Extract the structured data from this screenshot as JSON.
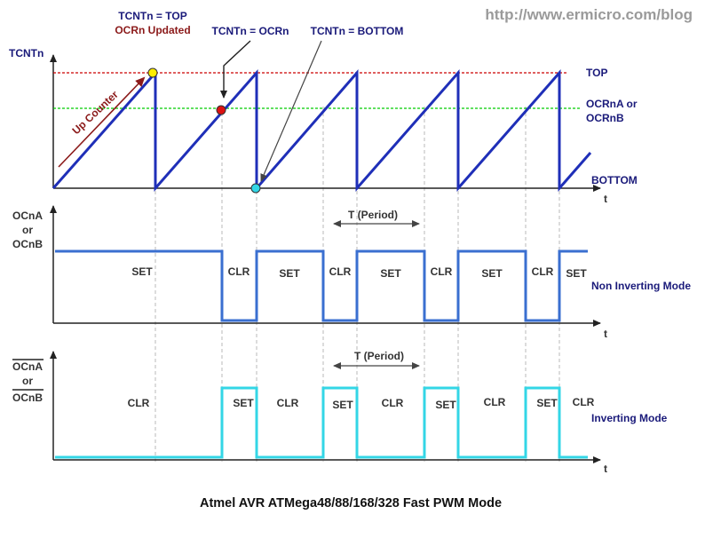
{
  "watermark": "http://www.ermicro.com/blog",
  "caption": "Atmel AVR ATMega48/88/168/328 Fast PWM Mode",
  "counter_panel": {
    "y_axis_label": "TCNTn",
    "x_axis_label": "t",
    "level_top": "TOP",
    "level_ocr_line1": "OCRnA or",
    "level_ocr_line2": "OCRnB",
    "level_bottom": "BOTTOM",
    "annotation_top_line1": "TCNTn = TOP",
    "annotation_top_line2": "OCRn Updated",
    "annotation_ocr": "TCNTn = OCRn",
    "annotation_bottom": "TCNTn = BOTTOM",
    "up_counter_label": "Up Counter"
  },
  "non_inverting_panel": {
    "y_label_line1": "OCnA",
    "y_label_line2": "or",
    "y_label_line3": "OCnB",
    "x_axis_label": "t",
    "period_label": "T (Period)",
    "mode_label": "Non Inverting Mode",
    "segments": [
      "SET",
      "CLR",
      "SET",
      "CLR",
      "SET",
      "CLR",
      "SET",
      "CLR",
      "SET"
    ]
  },
  "inverting_panel": {
    "y_label_line1": "OCnA",
    "y_label_line2": "or",
    "y_label_line3": "OCnB",
    "x_axis_label": "t",
    "period_label": "T (Period)",
    "mode_label": "Inverting Mode",
    "segments": [
      "CLR",
      "SET",
      "CLR",
      "SET",
      "CLR",
      "SET",
      "CLR",
      "SET",
      "CLR"
    ]
  },
  "colors": {
    "sawtooth": "#1f2fb8",
    "top_line": "#cc0000",
    "ocr_line": "#00cc00",
    "non_inverting_wave": "#3a6fd0",
    "inverting_wave": "#33d6e6",
    "marker_top": "#ffee00",
    "marker_ocr": "#dd1111",
    "marker_bottom": "#33d6e6",
    "up_arrow": "#8b1a1a"
  }
}
